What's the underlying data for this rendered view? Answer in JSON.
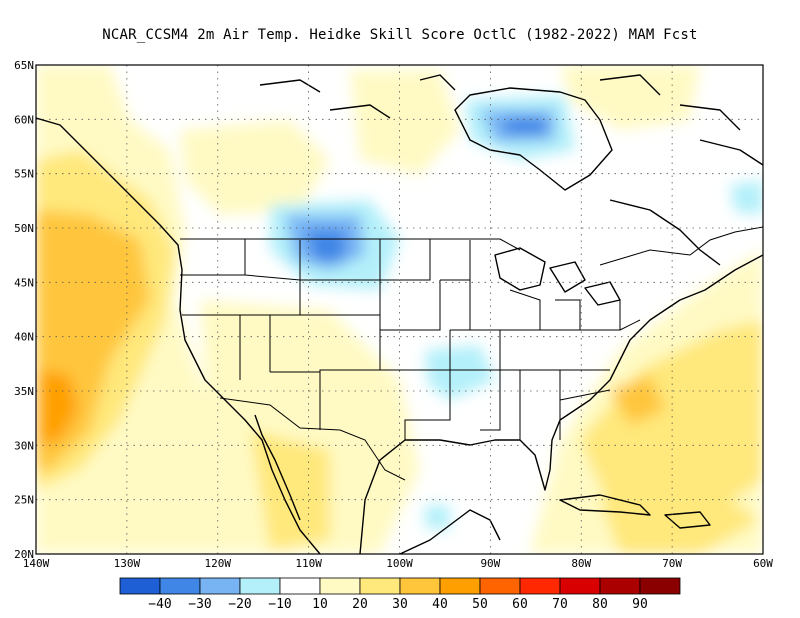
{
  "title": "NCAR_CCSM4  2m Air Temp. Heidke Skill Score OctlC (1982-2022) MAM Fcst",
  "map": {
    "lon_labels": [
      "140W",
      "130W",
      "120W",
      "110W",
      "100W",
      "90W",
      "80W",
      "70W",
      "60W"
    ],
    "lat_labels": [
      "65N",
      "60N",
      "55N",
      "50N",
      "45N",
      "40N",
      "35N",
      "30N",
      "25N",
      "20N"
    ],
    "lon_range": [
      -140,
      -60
    ],
    "lat_range": [
      20,
      65
    ],
    "gridlines": "dotted"
  },
  "colorbar": {
    "labels": [
      "−40",
      "−30",
      "−20",
      "−10",
      "10",
      "20",
      "30",
      "40",
      "50",
      "60",
      "70",
      "80",
      "90"
    ],
    "colors": [
      "#1f5fd6",
      "#3f86e6",
      "#78b4f4",
      "#b4f0fa",
      "#ffffff",
      "#fffac4",
      "#ffe87c",
      "#ffc63c",
      "#ffa000",
      "#ff6400",
      "#ff2800",
      "#d80000",
      "#aa0000",
      "#8a0000"
    ]
  },
  "chart_data": {
    "type": "heatmap",
    "variable": "2m Air Temp. Heidke Skill Score",
    "season": "MAM",
    "period": "1982-2022",
    "model": "NCAR_CCSM4",
    "color_levels": [
      -40,
      -30,
      -20,
      -10,
      10,
      20,
      30,
      40,
      50,
      60,
      70,
      80,
      90
    ],
    "regions": [
      {
        "region": "NE Pacific off US West Coast (~35N,138W)",
        "value": 40
      },
      {
        "region": "NE Pacific off Pacific NW (~45N,137W)",
        "value": 30
      },
      {
        "region": "Montana / Saskatchewan (~49N,108W)",
        "value": -30
      },
      {
        "region": "Hudson Bay (~59N,83W)",
        "value": -30
      },
      {
        "region": "Western Atlantic off Carolinas (~33N,75W)",
        "value": 30
      },
      {
        "region": "Gulf of Mexico (~25N,92W)",
        "value": -10
      },
      {
        "region": "Northern Mexico (~28N,110W)",
        "value": 20
      },
      {
        "region": "Arkansas / Missouri (~37N,93W)",
        "value": -10
      }
    ]
  }
}
